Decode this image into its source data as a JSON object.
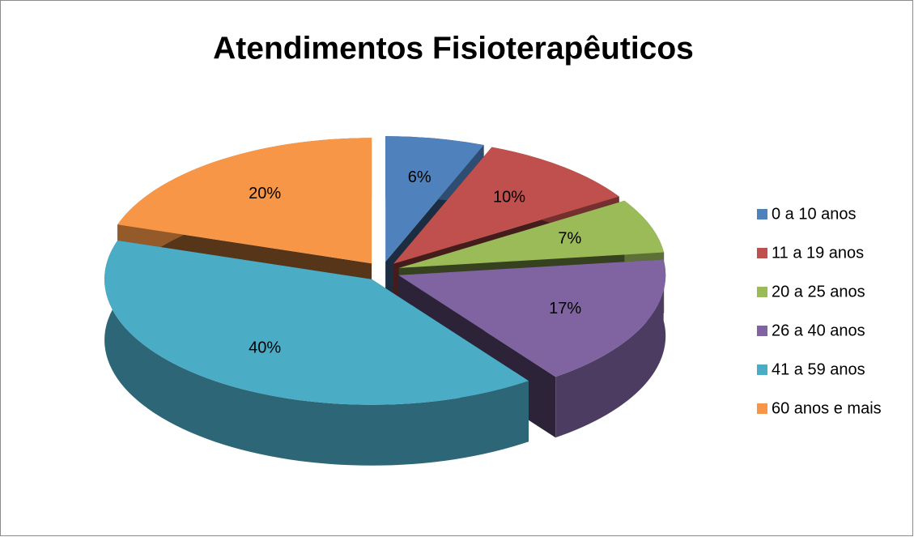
{
  "chart_data": {
    "type": "pie",
    "title": "Atendimentos Fisioterapêuticos",
    "categories": [
      "0 a 10 anos",
      "11 a 19 anos",
      "20 a 25 anos",
      "26 a 40 anos",
      "41 a 59 anos",
      "60 anos e mais"
    ],
    "values": [
      6,
      10,
      7,
      17,
      40,
      20
    ],
    "value_labels": [
      "6%",
      "10%",
      "7%",
      "17%",
      "40%",
      "20%"
    ],
    "colors": [
      "#4f81bd",
      "#c0504d",
      "#9bbb59",
      "#8064a2",
      "#4bacc6",
      "#f79646"
    ],
    "legend": "right"
  }
}
